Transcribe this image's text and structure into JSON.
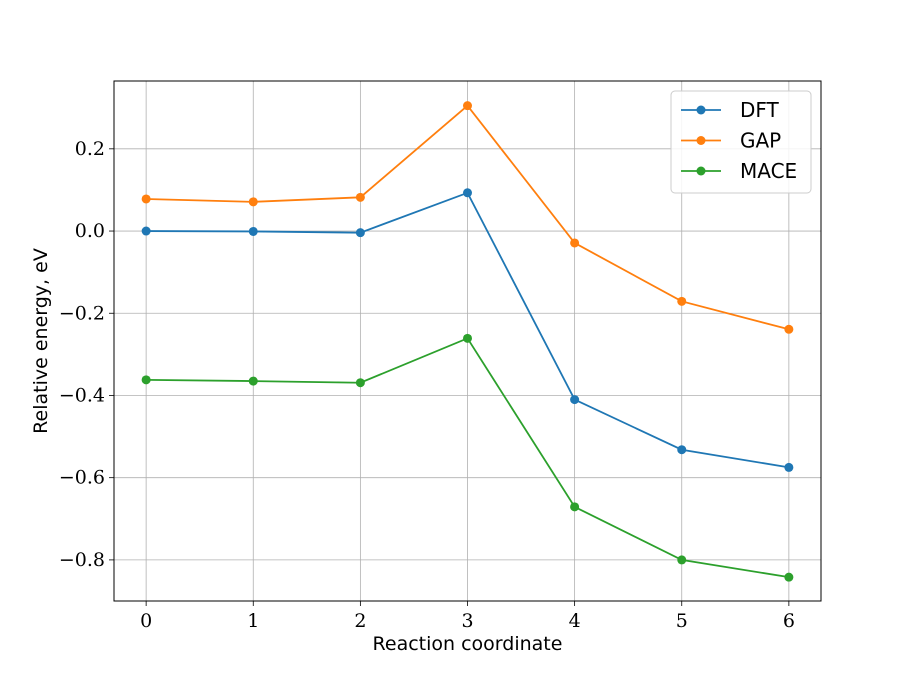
{
  "chart_data": {
    "type": "line",
    "xlabel": "Reaction coordinate",
    "ylabel": "Relative energy, eV",
    "x": [
      0,
      1,
      2,
      3,
      4,
      5,
      6
    ],
    "xlim": [
      -0.3,
      6.3
    ],
    "ylim": [
      -0.9,
      0.365
    ],
    "xticks": [
      0,
      1,
      2,
      3,
      4,
      5,
      6
    ],
    "yticks": [
      -0.8,
      -0.6,
      -0.4,
      -0.2,
      0.0,
      0.2
    ],
    "ytick_labels": [
      "−0.8",
      "−0.6",
      "−0.4",
      "−0.2",
      "0.0",
      "0.2"
    ],
    "grid": true,
    "legend_position": "top-right",
    "series": [
      {
        "name": "DFT",
        "color": "#1f77b4",
        "values": [
          0.0,
          -0.001,
          -0.004,
          0.093,
          -0.41,
          -0.532,
          -0.575
        ]
      },
      {
        "name": "GAP",
        "color": "#ff7f0e",
        "values": [
          0.078,
          0.071,
          0.082,
          0.305,
          -0.029,
          -0.171,
          -0.239
        ]
      },
      {
        "name": "MACE",
        "color": "#2ca02c",
        "values": [
          -0.362,
          -0.365,
          -0.369,
          -0.261,
          -0.671,
          -0.8,
          -0.842
        ]
      }
    ]
  }
}
